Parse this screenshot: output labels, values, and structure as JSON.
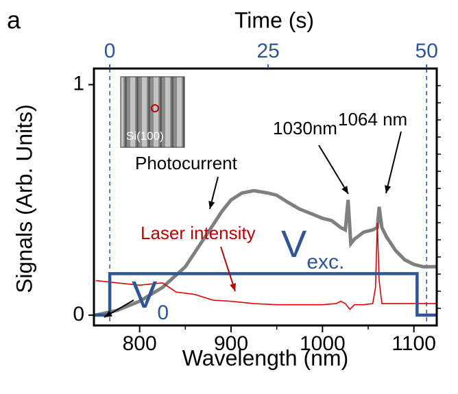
{
  "chart_data": {
    "type": "line",
    "panel_label": "a",
    "xlabel": "Wavelength (nm)",
    "ylabel": "Signals (Arb. Units)",
    "x2label": "Time (s)",
    "xlim": [
      750,
      1125
    ],
    "xticks": [
      800,
      900,
      1000,
      1100
    ],
    "x2lim": [
      -2.5,
      51.6
    ],
    "x2ticks": [
      0,
      25,
      50
    ],
    "ylim": [
      -0.045,
      1.07
    ],
    "yticks": [
      0,
      1
    ],
    "axis_color": "#2f5597",
    "series": [
      {
        "name": "Photocurrent",
        "color": "#7f7f7f",
        "x": [
          752,
          775,
          800,
          825,
          850,
          865,
          880,
          890,
          900,
          912,
          925,
          940,
          950,
          962,
          975,
          988,
          1000,
          1010,
          1020,
          1025,
          1028,
          1031,
          1035,
          1045,
          1055,
          1060,
          1062,
          1065,
          1070,
          1080,
          1090,
          1100,
          1110,
          1125
        ],
        "values": [
          0.0,
          0.02,
          0.06,
          0.12,
          0.21,
          0.3,
          0.39,
          0.45,
          0.5,
          0.53,
          0.54,
          0.53,
          0.52,
          0.49,
          0.46,
          0.44,
          0.42,
          0.41,
          0.38,
          0.37,
          0.5,
          0.31,
          0.33,
          0.36,
          0.37,
          0.38,
          0.47,
          0.38,
          0.34,
          0.28,
          0.24,
          0.22,
          0.21,
          0.21
        ]
      },
      {
        "name": "Laser intensity",
        "color": "#e00000",
        "x": [
          752,
          775,
          800,
          825,
          840,
          860,
          880,
          900,
          925,
          950,
          975,
          1000,
          1015,
          1020,
          1025,
          1030,
          1035,
          1045,
          1055,
          1058,
          1060,
          1062,
          1065,
          1075,
          1100,
          1125
        ],
        "values": [
          0.15,
          0.14,
          0.13,
          0.14,
          0.1,
          0.09,
          0.065,
          0.06,
          0.05,
          0.045,
          0.045,
          0.045,
          0.05,
          0.06,
          0.05,
          0.025,
          0.045,
          0.045,
          0.05,
          0.12,
          0.4,
          0.15,
          0.05,
          0.05,
          0.05,
          0.05
        ]
      },
      {
        "name": "V",
        "color": "#2f5597",
        "axis": "x2",
        "x": [
          -2.5,
          0,
          0,
          48.5,
          48.5,
          51.6
        ],
        "values": [
          0,
          0,
          0.18,
          0.18,
          0,
          0
        ]
      }
    ],
    "annotations": [
      {
        "text": "1064 nm"
      },
      {
        "text": "1030nm"
      },
      {
        "text": "Photocurrent"
      },
      {
        "text": "Laser intensity"
      },
      {
        "text": "V",
        "sub": "exc."
      },
      {
        "text": "V",
        "sub": "0"
      },
      {
        "text": "Si(100)"
      }
    ]
  }
}
